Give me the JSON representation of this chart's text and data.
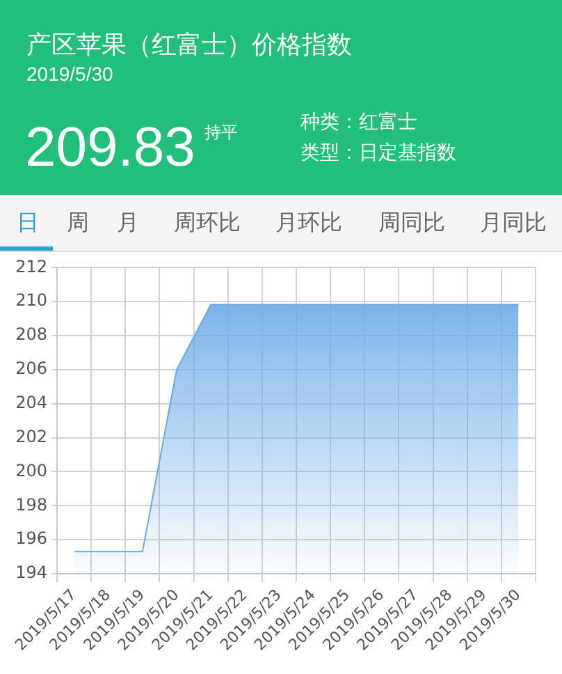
{
  "chart_data": {
    "type": "area",
    "title": "产区苹果（红富士）价格指数",
    "subtitle": "2019/5/30",
    "annotations": [
      "209.83",
      "持平",
      "种类：红富士",
      "类型：日定基指数",
      "日",
      "周",
      "月",
      "周环比",
      "月环比",
      "周同比",
      "月同比"
    ],
    "categories": [
      "2019/5/17",
      "2019/5/18",
      "2019/5/19",
      "2019/5/20",
      "2019/5/21",
      "2019/5/22",
      "2019/5/23",
      "2019/5/24",
      "2019/5/25",
      "2019/5/26",
      "2019/5/27",
      "2019/5/28",
      "2019/5/29",
      "2019/5/30"
    ],
    "values": [
      195.3,
      195.3,
      195.3,
      206.0,
      209.83,
      209.83,
      209.83,
      209.83,
      209.83,
      209.83,
      209.83,
      209.83,
      209.83,
      209.83
    ],
    "color": "#6aaae6",
    "ylim": [
      194,
      212
    ],
    "yticks": [
      194,
      196,
      198,
      200,
      202,
      204,
      206,
      208,
      210,
      212
    ],
    "grid": true
  }
}
